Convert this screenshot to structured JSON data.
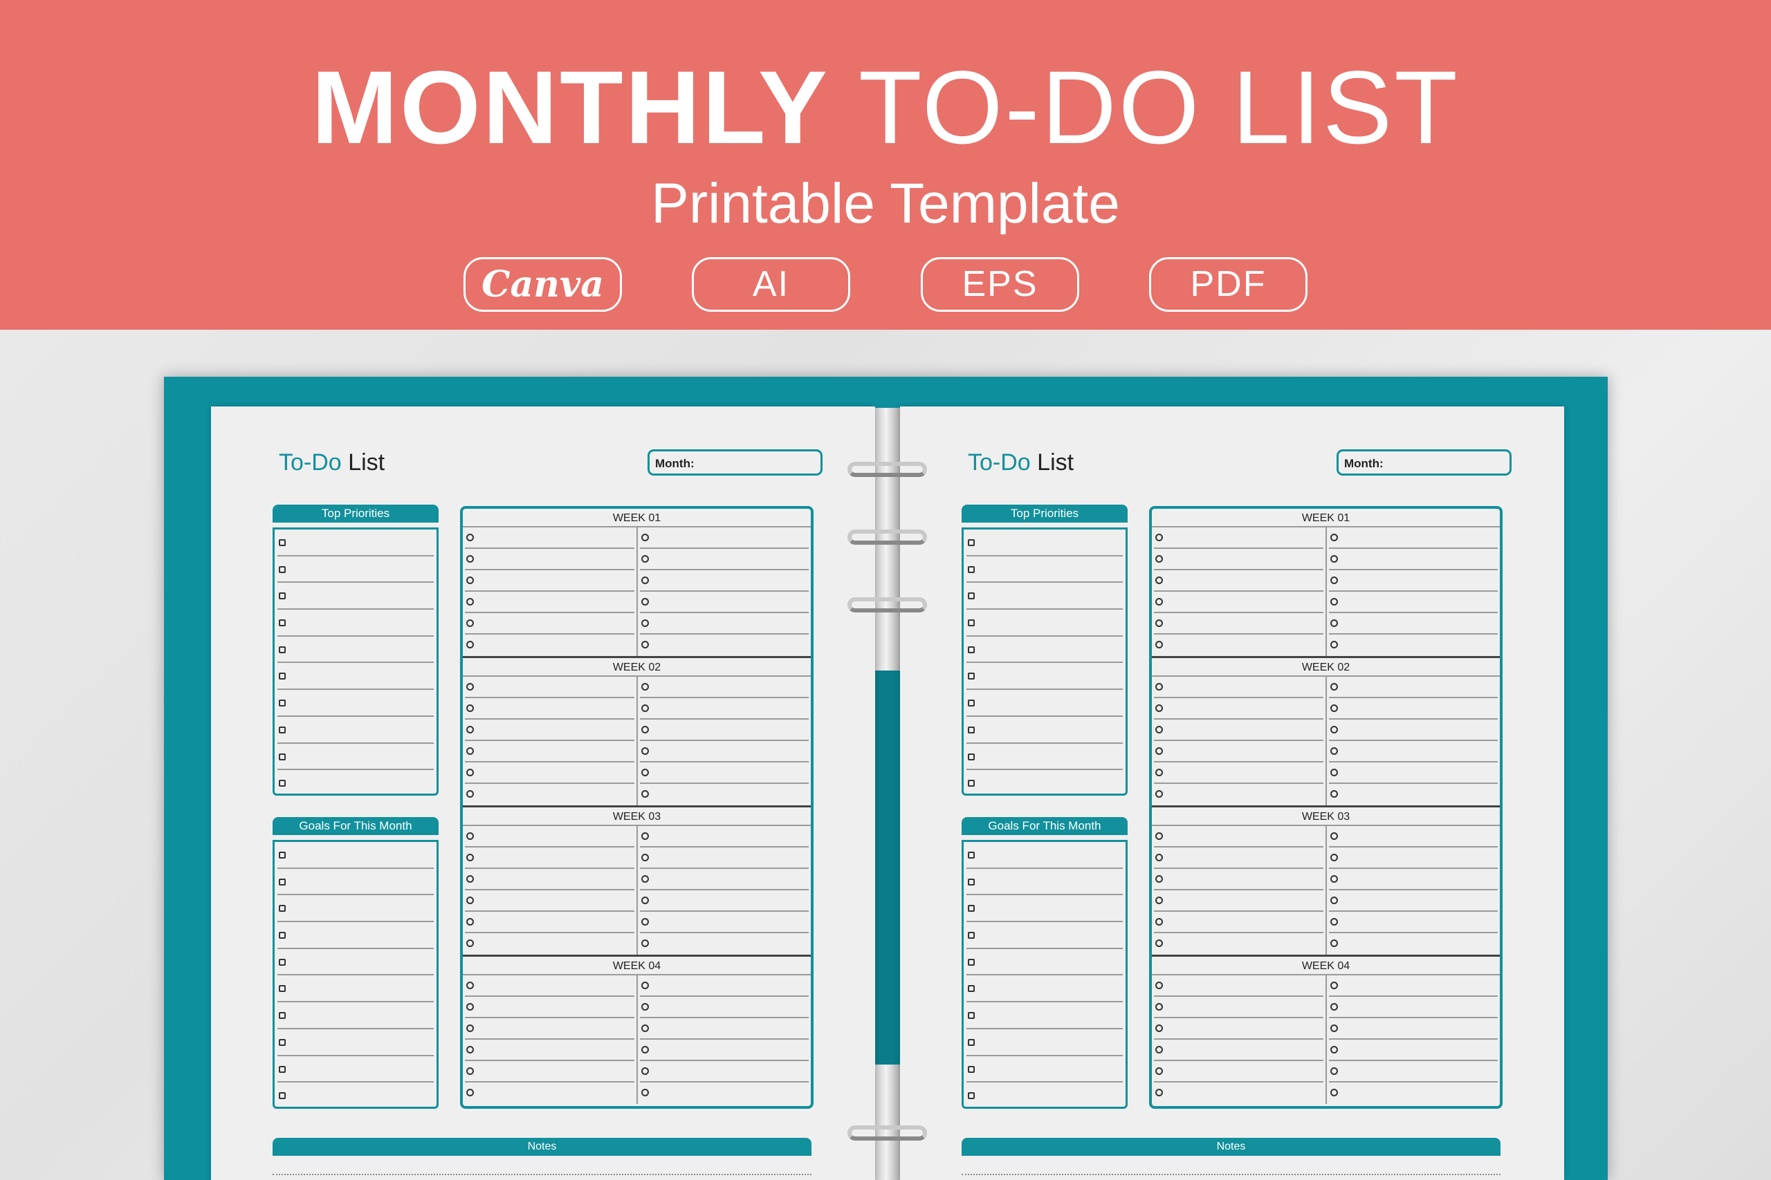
{
  "banner": {
    "title_bold": "MONTHLY",
    "title_light": "TO-DO LIST",
    "subtitle": "Printable Template",
    "formats": [
      "Canva",
      "AI",
      "EPS",
      "PDF"
    ],
    "background_color": "#e8716a"
  },
  "binder_color": "#0e8f9e",
  "accent_color": "#12909c",
  "pages": [
    {
      "title_accent": "To-Do",
      "title_rest": "List",
      "month_label": "Month:",
      "top_priorities": "Top Priorities",
      "goals": "Goals For This Month",
      "weeks": [
        "WEEK 01",
        "WEEK 02",
        "WEEK 03",
        "WEEK 04"
      ],
      "notes": "Notes"
    },
    {
      "title_accent": "To-Do",
      "title_rest": "List",
      "month_label": "Month:",
      "top_priorities": "Top Priorities",
      "goals": "Goals For This Month",
      "weeks": [
        "WEEK 01",
        "WEEK 02",
        "WEEK 03",
        "WEEK 04"
      ],
      "notes": "Notes"
    }
  ]
}
